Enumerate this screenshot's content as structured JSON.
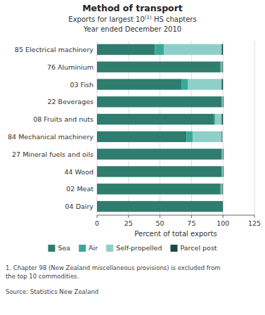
{
  "chart_data": {
    "type": "bar",
    "orientation": "horizontal",
    "stacked": true,
    "title": "Method of transport",
    "subtitle": [
      "Exports for largest 10",
      "(1)",
      " HS chapters"
    ],
    "subtitle2": "Year ended December 2010",
    "xlabel": "Percent of total exports",
    "annotations": [
      "1. Chapter 98 (New Zealand miscellaneous provisions) is excluded from",
      "the top 10 commodities.",
      "Source: Statistics New Zealand"
    ],
    "categories": [
      "85 Electrical machinery",
      "76 Aluminium",
      "03 Fish",
      "22 Beverages",
      "08 Fruits and nuts",
      "84 Mechanical machinery",
      "27 Mineral fuels and oils",
      "44 Wood",
      "02 Meat",
      "04 Dairy"
    ],
    "series": [
      {
        "name": "Sea",
        "color": "#2e7d6e",
        "values": [
          46,
          98,
          67,
          99,
          93,
          71,
          99,
          99,
          98,
          100
        ]
      },
      {
        "name": "Air",
        "color": "#3aa898",
        "values": [
          7,
          1,
          5,
          0.5,
          1,
          5,
          0.5,
          0.5,
          1,
          0
        ]
      },
      {
        "name": "Self-propelled",
        "color": "#8ecfc9",
        "values": [
          46,
          0.5,
          27,
          0.5,
          5,
          23,
          0.5,
          0.5,
          0.5,
          0
        ]
      },
      {
        "name": "Parcel post",
        "color": "#1a4a42",
        "values": [
          1,
          0.5,
          1,
          0.5,
          1,
          0.5,
          0.5,
          0.5,
          0.5,
          0
        ]
      }
    ],
    "xlim": [
      0,
      125
    ],
    "xticks": [
      0,
      25,
      50,
      75,
      100,
      125
    ],
    "grid": true,
    "legend": "bottom"
  }
}
